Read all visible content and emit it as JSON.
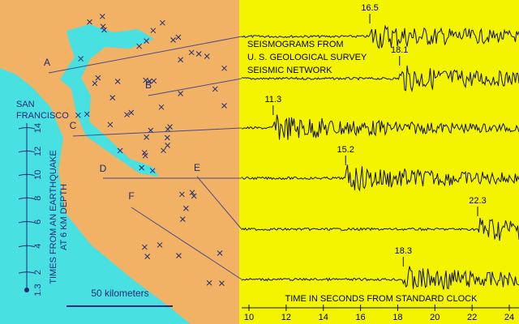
{
  "map": {
    "stations": [
      {
        "label": "A"
      },
      {
        "label": "B"
      },
      {
        "label": "C"
      },
      {
        "label": "D"
      },
      {
        "label": "E"
      },
      {
        "label": "F"
      }
    ],
    "city_label": [
      "SAN",
      "FRANCISCO"
    ],
    "scale_label": "50 kilometers",
    "time_scale": {
      "caption": [
        "TIMES FROM AN EARTHQUAKE",
        "AT 6 KM DEPTH"
      ],
      "ticks": [
        1.3,
        2,
        4,
        6,
        8,
        10,
        12,
        14
      ]
    }
  },
  "seismograms": {
    "title_lines": [
      "SEISMOGRAMS FROM",
      "U. S. GEOLOGICAL SURVEY",
      "SEISMIC NETWORK"
    ],
    "arrivals": [
      16.5,
      18.1,
      11.3,
      15.2,
      22.3,
      18.3
    ],
    "axis": {
      "label": "TIME IN SECONDS FROM STANDARD CLOCK",
      "xlim": [
        10,
        24
      ],
      "xticks": [
        10,
        12,
        14,
        16,
        18,
        20,
        22,
        24
      ]
    }
  }
}
